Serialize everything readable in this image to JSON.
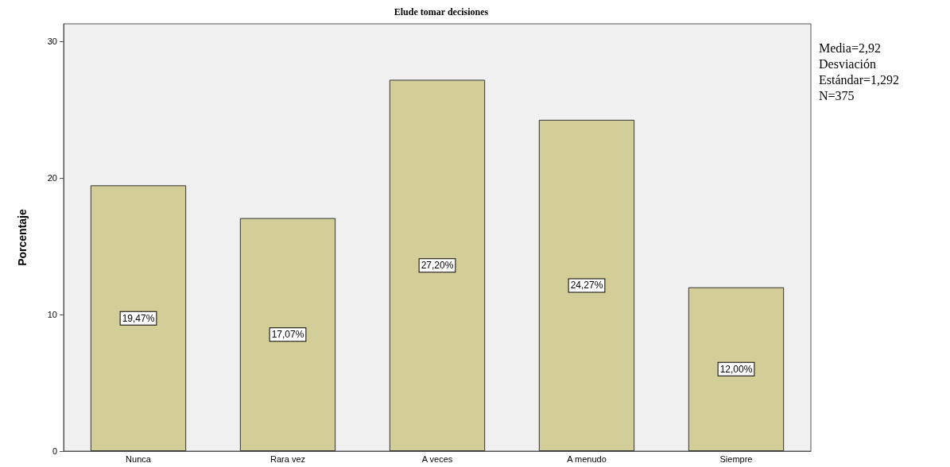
{
  "chart_data": {
    "type": "bar",
    "title": "Elude tomar decisiones",
    "ylabel": "Porcentaje",
    "categories": [
      "Nunca",
      "Rara vez",
      "A veces",
      "A menudo",
      "Siempre"
    ],
    "values": [
      19.47,
      17.07,
      27.2,
      24.27,
      12.0
    ],
    "value_labels": [
      "19,47%",
      "17,07%",
      "27,20%",
      "24,27%",
      "12,00%"
    ],
    "color": "#d3ce97",
    "ylim": [
      0,
      31.3
    ],
    "yticks": [
      0,
      10,
      20,
      30
    ],
    "grid": false,
    "annotations": [
      "Media=2,92",
      "Desviación Estándar=1,292",
      "N=375"
    ]
  }
}
